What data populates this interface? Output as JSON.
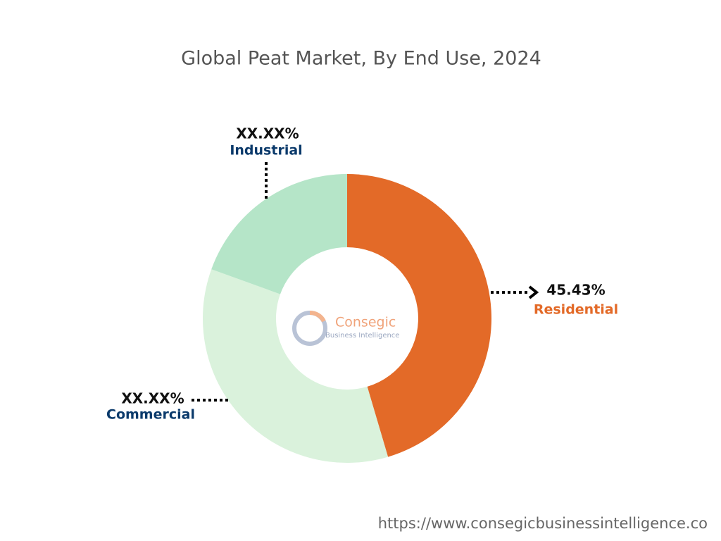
{
  "chart_data": {
    "type": "donut",
    "title": "Global Peat Market, By End Use, 2024",
    "categories": [
      "Residential",
      "Commercial",
      "Industrial"
    ],
    "values": [
      45.43,
      35.1,
      19.47
    ],
    "value_labels": [
      "45.43%",
      "XX.XX%",
      "XX.XX%"
    ],
    "colors": [
      "#e36a28",
      "#daf2dc",
      "#b5e5c8"
    ],
    "label_colors": [
      "#e36a28",
      "#0b3a6b",
      "#0b3a6b"
    ]
  },
  "logo": {
    "name": "Consegic",
    "tagline": "Business Intelligence"
  },
  "source_url": "https://www.consegicbusinessintelligence.co"
}
